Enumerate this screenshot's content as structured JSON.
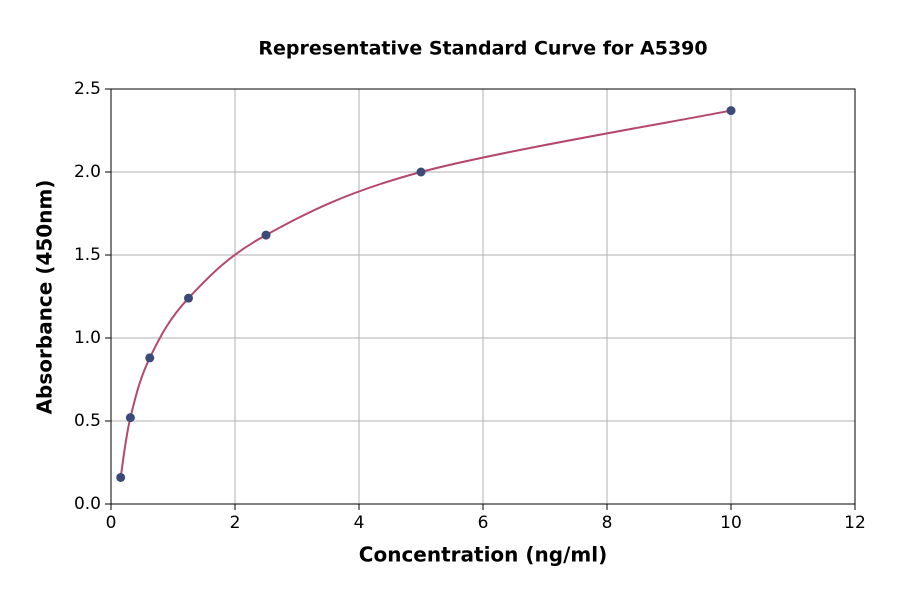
{
  "chart_data": {
    "type": "scatter",
    "title": "Representative Standard Curve for A5390",
    "x_label": "Concentration (ng/ml)",
    "y_label": "Absorbance (450nm)",
    "x": [
      0.156,
      0.3125,
      0.625,
      1.25,
      2.5,
      5,
      10
    ],
    "series": [
      {
        "color": "#3b4a7a",
        "line_color": "#b5486a",
        "values": [
          0.16,
          0.52,
          0.88,
          1.24,
          1.62,
          2.0,
          2.37
        ]
      }
    ],
    "xlim": [
      0,
      12
    ],
    "xticks": [
      0,
      2,
      4,
      6,
      8,
      10,
      12
    ],
    "ylim": [
      0,
      2.5
    ],
    "yticks": [
      {
        "value": 0,
        "label": "0.0"
      },
      {
        "value": 0.5,
        "label": "0.5"
      },
      {
        "value": 1,
        "label": "1.0"
      },
      {
        "value": 1.5,
        "label": "1.5"
      },
      {
        "value": 2,
        "label": "2.0"
      },
      {
        "value": 2.5,
        "label": "2.5"
      }
    ],
    "grid": true
  }
}
